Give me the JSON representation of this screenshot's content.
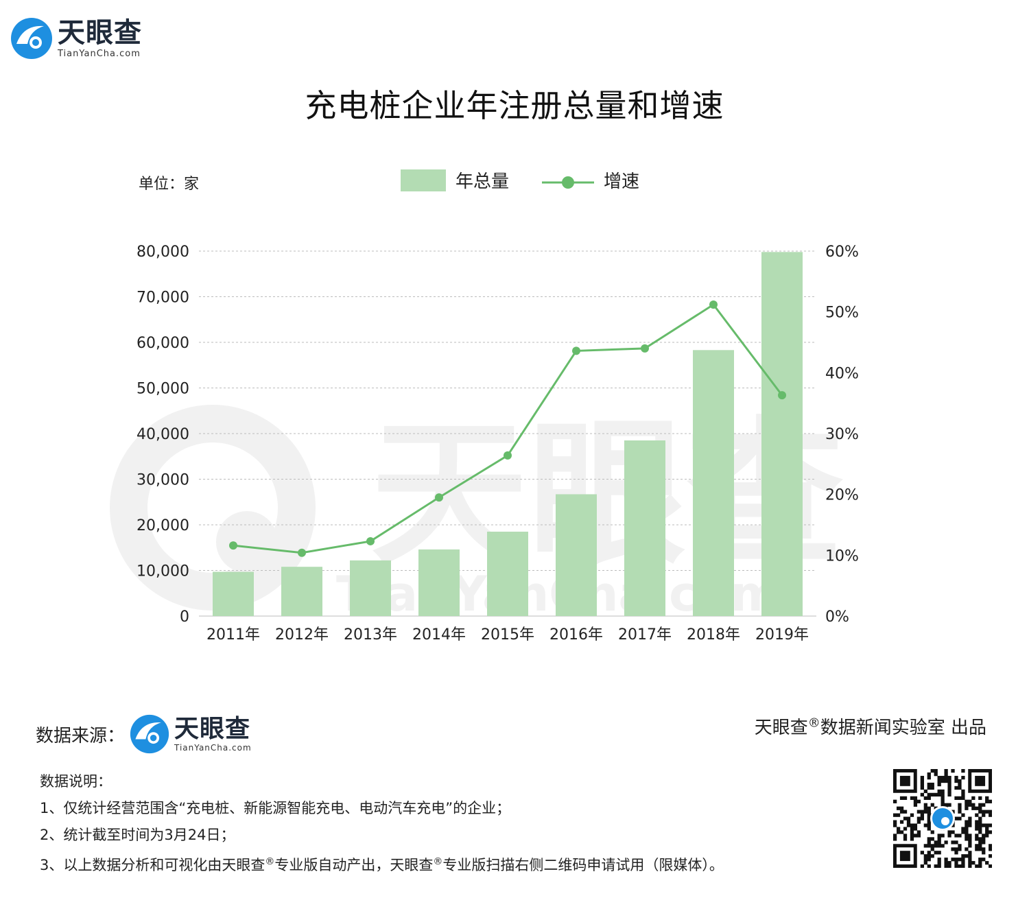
{
  "header": {
    "logo_main": "天眼查",
    "logo_sub": "TianYanCha.com"
  },
  "title": "充电桩企业年注册总量和增速",
  "unit_label": "单位：家",
  "legend": {
    "bar_label": "年总量",
    "line_label": "增速"
  },
  "colors": {
    "bar": "#b3dcb3",
    "line": "#66bb6a",
    "grid": "#bbbbbb",
    "logo_blue": "#1e8fe0"
  },
  "chart_data": {
    "type": "bar",
    "title": "充电桩企业年注册总量和增速",
    "categories": [
      "2011年",
      "2012年",
      "2013年",
      "2014年",
      "2015年",
      "2016年",
      "2017年",
      "2018年",
      "2019年"
    ],
    "series": [
      {
        "name": "年总量",
        "type": "bar",
        "axis": "left",
        "values": [
          9700,
          10800,
          12200,
          14600,
          18500,
          26700,
          38500,
          58300,
          79800
        ]
      },
      {
        "name": "增速",
        "type": "line",
        "axis": "right",
        "values": [
          11.6,
          10.4,
          12.3,
          19.5,
          26.4,
          43.6,
          44.0,
          51.2,
          36.3
        ]
      }
    ],
    "left_axis": {
      "ylim": [
        0,
        80000
      ],
      "tick_labels": [
        "0",
        "10,000",
        "20,000",
        "30,000",
        "40,000",
        "50,000",
        "60,000",
        "70,000",
        "80,000"
      ]
    },
    "right_axis": {
      "ylim": [
        0,
        60
      ],
      "tick_labels": [
        "0%",
        "10%",
        "20%",
        "30%",
        "40%",
        "50%",
        "60%"
      ]
    },
    "grid": true,
    "legend_position": "top-center"
  },
  "footer": {
    "source_label": "数据来源：",
    "producer_brand": "天眼查",
    "producer_mark": "®",
    "producer_text": "数据新闻实验室 出品"
  },
  "notes": {
    "heading": "数据说明：",
    "line1": "1、仅统计经营范围含“充电桩、新能源智能充电、电动汽车充电”的企业；",
    "line2": "2、统计截至时间为3月24日；",
    "line3_a": "3、以上数据分析和可视化由天眼查",
    "line3_mark1": "®",
    "line3_b": "专业版自动产出，天眼查",
    "line3_mark2": "®",
    "line3_c": "专业版扫描右侧二维码申请试用（限媒体）。"
  }
}
